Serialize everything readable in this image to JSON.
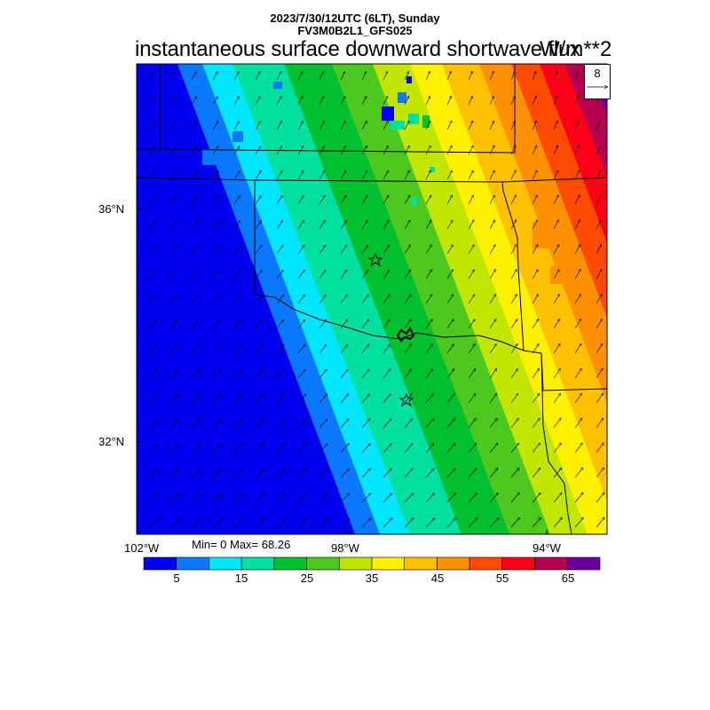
{
  "header": {
    "datetime": "2023/7/30/12UTC (6LT), Sunday",
    "model": "FV3M0B2L1_GFS025",
    "title": "instantaneous surface downward shortwave flux",
    "units": "W/m**2"
  },
  "axes": {
    "lat_labels": [
      "36°N",
      "32°N"
    ],
    "lon_labels": [
      "102°W",
      "98°W",
      "94°W"
    ]
  },
  "stats": {
    "text": "Min= 0 Max= 68.26"
  },
  "reference_vector": {
    "value": "8"
  },
  "colorbar": {
    "colors": [
      "#0000f0",
      "#0a78ff",
      "#00e6ff",
      "#00e0a0",
      "#00c030",
      "#4cc81e",
      "#c2e600",
      "#fff000",
      "#ffc000",
      "#ff9000",
      "#ff4a00",
      "#ff0018",
      "#b4004e",
      "#6a0099"
    ],
    "tick_labels": [
      "5",
      "15",
      "25",
      "35",
      "45",
      "55",
      "65"
    ]
  },
  "markers": [
    {
      "name": "star-marker-north"
    },
    {
      "name": "star-marker-south"
    }
  ]
}
